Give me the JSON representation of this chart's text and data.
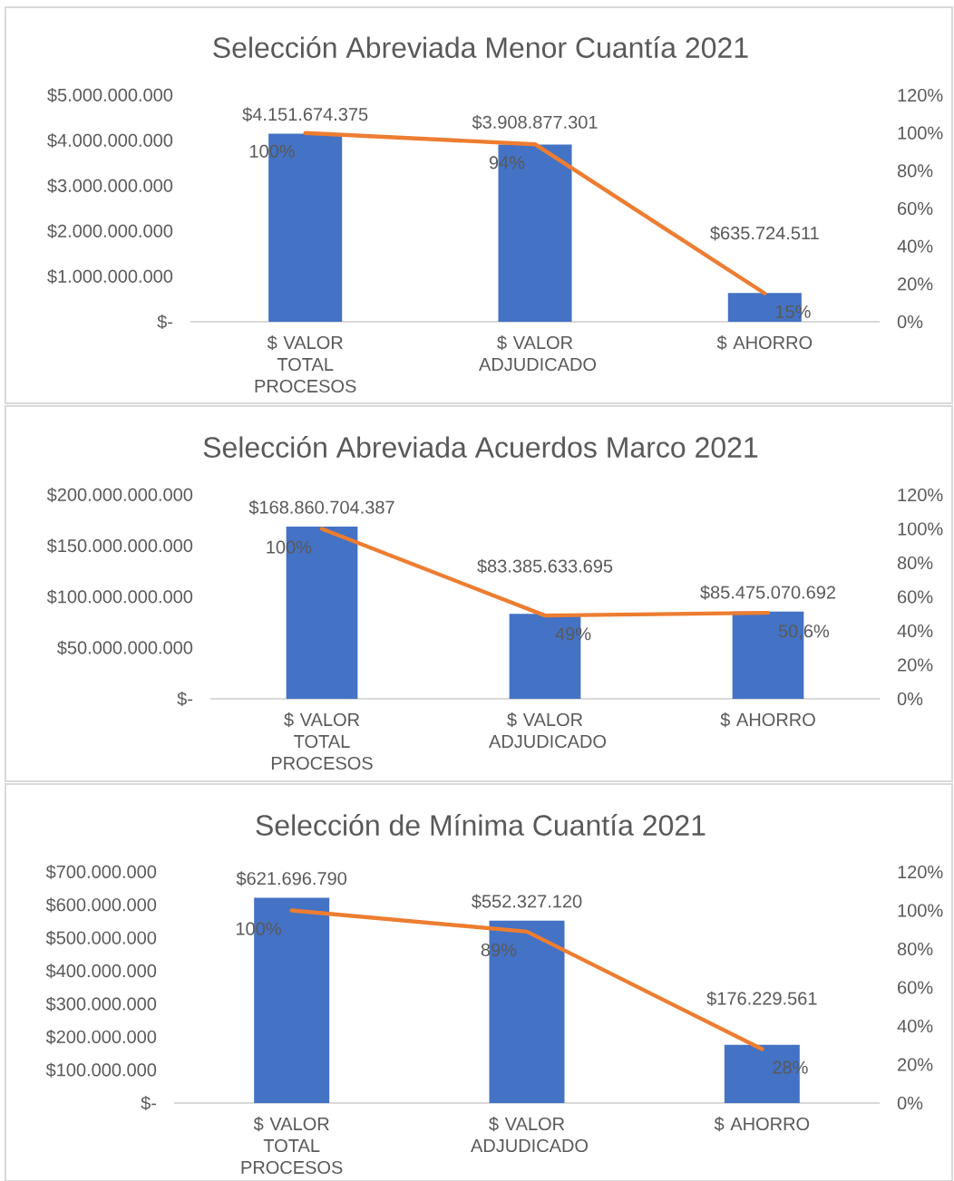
{
  "chart_data": [
    {
      "type": "bar",
      "title": "Selección Abreviada Menor Cuantía 2021",
      "categories": [
        "$ VALOR TOTAL PROCESOS",
        "$ VALOR ADJUDICADO",
        "$ AHORRO"
      ],
      "series": [
        {
          "type": "bar",
          "color": "#4472c4",
          "values": [
            4151674375,
            3908877301,
            635724511
          ],
          "value_labels": [
            "$4.151.674.375",
            "$3.908.877.301",
            "$635.724.511"
          ]
        },
        {
          "type": "line",
          "axis": "y2",
          "color": "#ed7d31",
          "values": [
            100,
            94,
            15
          ],
          "value_labels": [
            "100%",
            "94%",
            "15%"
          ]
        }
      ],
      "ylim": [
        0,
        5000000000
      ],
      "yticks": [
        {
          "value": 0,
          "label": "$-"
        },
        {
          "value": 1000000000,
          "label": "$1.000.000.000"
        },
        {
          "value": 2000000000,
          "label": "$2.000.000.000"
        },
        {
          "value": 3000000000,
          "label": "$3.000.000.000"
        },
        {
          "value": 4000000000,
          "label": "$4.000.000.000"
        },
        {
          "value": 5000000000,
          "label": "$5.000.000.000"
        }
      ],
      "y2lim": [
        0,
        120
      ],
      "y2ticks": [
        {
          "value": 0,
          "label": "0%"
        },
        {
          "value": 20,
          "label": "20%"
        },
        {
          "value": 40,
          "label": "40%"
        },
        {
          "value": 60,
          "label": "60%"
        },
        {
          "value": 80,
          "label": "80%"
        },
        {
          "value": 100,
          "label": "100%"
        },
        {
          "value": 120,
          "label": "120%"
        }
      ]
    },
    {
      "type": "bar",
      "title": "Selección Abreviada Acuerdos Marco 2021",
      "categories": [
        "$ VALOR TOTAL PROCESOS",
        "$ VALOR ADJUDICADO",
        "$ AHORRO"
      ],
      "series": [
        {
          "type": "bar",
          "color": "#4472c4",
          "values": [
            168860704387,
            83385633695,
            85475070692
          ],
          "value_labels": [
            "$168.860.704.387",
            "$83.385.633.695",
            "$85.475.070.692"
          ]
        },
        {
          "type": "line",
          "axis": "y2",
          "color": "#ed7d31",
          "values": [
            100,
            49,
            50.6
          ],
          "value_labels": [
            "100%",
            "49%",
            "50,6%"
          ]
        }
      ],
      "ylim": [
        0,
        200000000000
      ],
      "yticks": [
        {
          "value": 0,
          "label": "$-"
        },
        {
          "value": 50000000000,
          "label": "$50.000.000.000"
        },
        {
          "value": 100000000000,
          "label": "$100.000.000.000"
        },
        {
          "value": 150000000000,
          "label": "$150.000.000.000"
        },
        {
          "value": 200000000000,
          "label": "$200.000.000.000"
        }
      ],
      "y2lim": [
        0,
        120
      ],
      "y2ticks": [
        {
          "value": 0,
          "label": "0%"
        },
        {
          "value": 20,
          "label": "20%"
        },
        {
          "value": 40,
          "label": "40%"
        },
        {
          "value": 60,
          "label": "60%"
        },
        {
          "value": 80,
          "label": "80%"
        },
        {
          "value": 100,
          "label": "100%"
        },
        {
          "value": 120,
          "label": "120%"
        }
      ]
    },
    {
      "type": "bar",
      "title": "Selección de Mínima Cuantía 2021",
      "categories": [
        "$ VALOR TOTAL PROCESOS",
        "$ VALOR ADJUDICADO",
        "$ AHORRO"
      ],
      "series": [
        {
          "type": "bar",
          "color": "#4472c4",
          "values": [
            621696790,
            552327120,
            176229561
          ],
          "value_labels": [
            "$621.696.790",
            "$552.327.120",
            "$176.229.561"
          ]
        },
        {
          "type": "line",
          "axis": "y2",
          "color": "#ed7d31",
          "values": [
            100,
            89,
            28
          ],
          "value_labels": [
            "100%",
            "89%",
            "28%"
          ]
        }
      ],
      "ylim": [
        0,
        700000000
      ],
      "yticks": [
        {
          "value": 0,
          "label": "$-"
        },
        {
          "value": 100000000,
          "label": "$100.000.000"
        },
        {
          "value": 200000000,
          "label": "$200.000.000"
        },
        {
          "value": 300000000,
          "label": "$300.000.000"
        },
        {
          "value": 400000000,
          "label": "$400.000.000"
        },
        {
          "value": 500000000,
          "label": "$500.000.000"
        },
        {
          "value": 600000000,
          "label": "$600.000.000"
        },
        {
          "value": 700000000,
          "label": "$700.000.000"
        }
      ],
      "y2lim": [
        0,
        120
      ],
      "y2ticks": [
        {
          "value": 0,
          "label": "0%"
        },
        {
          "value": 20,
          "label": "20%"
        },
        {
          "value": 40,
          "label": "40%"
        },
        {
          "value": 60,
          "label": "60%"
        },
        {
          "value": 80,
          "label": "80%"
        },
        {
          "value": 100,
          "label": "100%"
        },
        {
          "value": 120,
          "label": "120%"
        }
      ]
    }
  ]
}
